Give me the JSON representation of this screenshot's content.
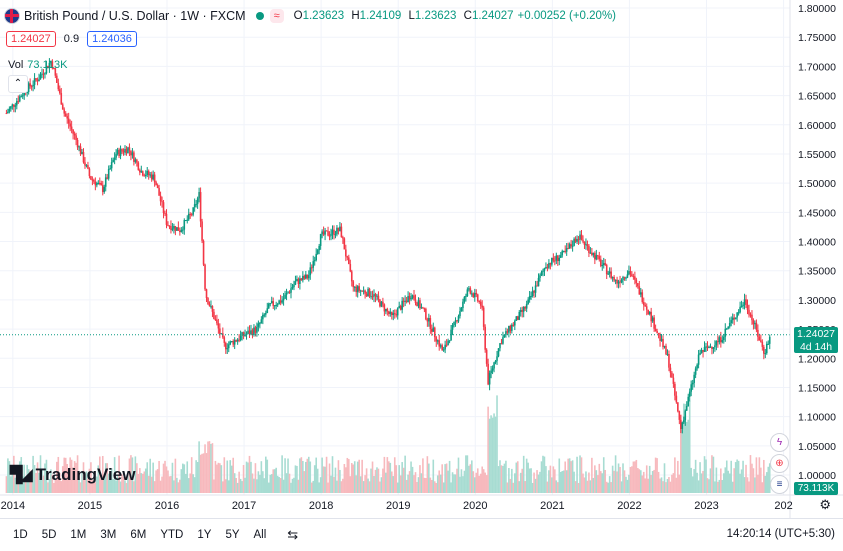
{
  "header": {
    "symbol": "British Pound / U.S. Dollar · 1W · FXCM",
    "open_label": "O",
    "open": "1.23623",
    "high_label": "H",
    "high": "1.24109",
    "low_label": "L",
    "low": "1.23623",
    "close_label": "C",
    "close": "1.24027",
    "change": "+0.00252 (+0.20%)",
    "pill": "≈"
  },
  "bid": "1.24027",
  "spread": "0.9",
  "ask": "1.24036",
  "volume": {
    "label": "Vol",
    "value": "73.113K"
  },
  "logo": "TradingView",
  "price_label": {
    "price": "1.24027",
    "countdown": "4d 14h"
  },
  "volume_label": "73.113K",
  "timeframes": [
    "1D",
    "5D",
    "1M",
    "3M",
    "6M",
    "YTD",
    "1Y",
    "5Y",
    "All"
  ],
  "clock": "14:20:14 (UTC+5:30)",
  "colors": {
    "up": "#089981",
    "down": "#f23645",
    "accent": "#2962ff"
  },
  "icons": [
    "flash-icon",
    "calendar-icon",
    "flag-icon",
    "settings-icon",
    "date-range-icon"
  ],
  "chart_data": {
    "type": "candlestick",
    "title": "British Pound / U.S. Dollar · 1W · FXCM",
    "x_ticks": [
      "2014",
      "2015",
      "2016",
      "2017",
      "2018",
      "2019",
      "2020",
      "2021",
      "2022",
      "2023",
      "202"
    ],
    "y_ticks": [
      "1.80000",
      "1.75000",
      "1.70000",
      "1.65000",
      "1.60000",
      "1.55000",
      "1.50000",
      "1.45000",
      "1.40000",
      "1.35000",
      "1.30000",
      "1.25000",
      "1.20000",
      "1.15000",
      "1.10000",
      "1.05000",
      "1.00000"
    ],
    "ylim": [
      1.0,
      1.8
    ],
    "series": [
      {
        "name": "GBPUSD",
        "points": [
          [
            "2013-12",
            1.62
          ],
          [
            "2014-03",
            1.66
          ],
          [
            "2014-05",
            1.68
          ],
          [
            "2014-07",
            1.71
          ],
          [
            "2014-09",
            1.62
          ],
          [
            "2014-11",
            1.57
          ],
          [
            "2015-01",
            1.51
          ],
          [
            "2015-03",
            1.49
          ],
          [
            "2015-05",
            1.55
          ],
          [
            "2015-07",
            1.56
          ],
          [
            "2015-09",
            1.52
          ],
          [
            "2015-11",
            1.51
          ],
          [
            "2016-01",
            1.43
          ],
          [
            "2016-03",
            1.42
          ],
          [
            "2016-05",
            1.45
          ],
          [
            "2016-06",
            1.48
          ],
          [
            "2016-07",
            1.31
          ],
          [
            "2016-10",
            1.22
          ],
          [
            "2017-01",
            1.24
          ],
          [
            "2017-03",
            1.25
          ],
          [
            "2017-05",
            1.29
          ],
          [
            "2017-07",
            1.3
          ],
          [
            "2017-09",
            1.33
          ],
          [
            "2017-11",
            1.34
          ],
          [
            "2018-01",
            1.41
          ],
          [
            "2018-04",
            1.42
          ],
          [
            "2018-06",
            1.32
          ],
          [
            "2018-09",
            1.31
          ],
          [
            "2018-12",
            1.27
          ],
          [
            "2019-03",
            1.31
          ],
          [
            "2019-05",
            1.28
          ],
          [
            "2019-08",
            1.21
          ],
          [
            "2019-12",
            1.32
          ],
          [
            "2020-02",
            1.29
          ],
          [
            "2020-03",
            1.16
          ],
          [
            "2020-05",
            1.23
          ],
          [
            "2020-09",
            1.29
          ],
          [
            "2020-12",
            1.36
          ],
          [
            "2021-03",
            1.38
          ],
          [
            "2021-05",
            1.41
          ],
          [
            "2021-08",
            1.37
          ],
          [
            "2021-11",
            1.33
          ],
          [
            "2022-01",
            1.35
          ],
          [
            "2022-04",
            1.28
          ],
          [
            "2022-07",
            1.2
          ],
          [
            "2022-09",
            1.08
          ],
          [
            "2022-12",
            1.21
          ],
          [
            "2023-03",
            1.23
          ],
          [
            "2023-07",
            1.3
          ],
          [
            "2023-10",
            1.21
          ],
          [
            "2023-11",
            1.24
          ]
        ]
      }
    ],
    "volume_axis": "overlay",
    "grid": true,
    "last_price": 1.24027,
    "last_volume": "73.113K"
  }
}
